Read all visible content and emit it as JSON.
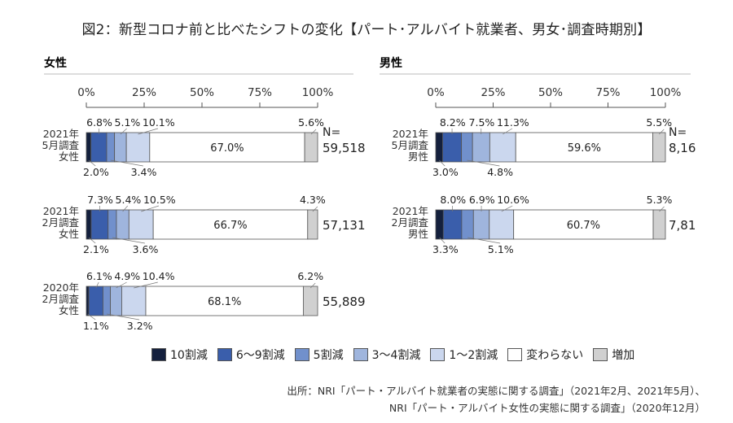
{
  "title": "図2：新型コロナ前と比べたシフトの変化【パート･アルバイト就業者、男女･調査時期別】",
  "legend": [
    {
      "label": "10割減",
      "color": "#14203d"
    },
    {
      "label": "6〜9割減",
      "color": "#3a5eab"
    },
    {
      "label": "5割減",
      "color": "#7190cc"
    },
    {
      "label": "3〜4割減",
      "color": "#9fb5dd"
    },
    {
      "label": "1〜2割減",
      "color": "#cbd7ee"
    },
    {
      "label": "変わらない",
      "color": "#ffffff"
    },
    {
      "label": "増加",
      "color": "#d0d0d0"
    }
  ],
  "source": [
    "出所：NRI「パート・アルバイト就業者の実態に関する調査」（2021年2月、2021年5月）、",
    "NRI「パート・アルバイト女性の実態に関する調査」（2020年12月）"
  ],
  "chart_data": [
    {
      "type": "stacked-bar-100",
      "title": "女性",
      "xlim": [
        0,
        100
      ],
      "ticks": [
        "0%",
        "25%",
        "50%",
        "75%",
        "100%"
      ],
      "n_header": "N=",
      "rows": [
        {
          "label": [
            "2021年",
            "5月調査",
            "女性"
          ],
          "n": "59,518",
          "values": [
            2.0,
            6.8,
            3.4,
            5.1,
            10.1,
            67.0,
            5.6
          ],
          "labels": [
            "2.0%",
            "6.8%",
            "3.4%",
            "5.1%",
            "10.1%",
            "67.0%",
            "5.6%"
          ]
        },
        {
          "label": [
            "2021年",
            "2月調査",
            "女性"
          ],
          "n": "57,131",
          "values": [
            2.1,
            7.3,
            3.6,
            5.4,
            10.5,
            66.7,
            4.3
          ],
          "labels": [
            "2.1%",
            "7.3%",
            "3.6%",
            "5.4%",
            "10.5%",
            "66.7%",
            "4.3%"
          ]
        },
        {
          "label": [
            "2020年",
            "2月調査",
            "女性"
          ],
          "n": "55,889",
          "values": [
            1.1,
            6.1,
            3.2,
            4.9,
            10.4,
            68.1,
            6.2
          ],
          "labels": [
            "1.1%",
            "6.1%",
            "3.2%",
            "4.9%",
            "10.4%",
            "68.1%",
            "6.2%"
          ]
        }
      ]
    },
    {
      "type": "stacked-bar-100",
      "title": "男性",
      "xlim": [
        0,
        100
      ],
      "ticks": [
        "0%",
        "25%",
        "50%",
        "75%",
        "100%"
      ],
      "n_header": "N=",
      "rows": [
        {
          "label": [
            "2021年",
            "5月調査",
            "男性"
          ],
          "n": "8,16",
          "values": [
            3.0,
            8.2,
            4.8,
            7.5,
            11.3,
            59.6,
            5.5
          ],
          "labels": [
            "3.0%",
            "8.2%",
            "4.8%",
            "7.5%",
            "11.3%",
            "59.6%",
            "5.5%"
          ]
        },
        {
          "label": [
            "2021年",
            "2月調査",
            "男性"
          ],
          "n": "7,81",
          "values": [
            3.3,
            8.0,
            5.1,
            6.9,
            10.6,
            60.7,
            5.3
          ],
          "labels": [
            "3.3%",
            "8.0%",
            "5.1%",
            "6.9%",
            "10.6%",
            "60.7%",
            "5.3%"
          ]
        }
      ]
    }
  ]
}
